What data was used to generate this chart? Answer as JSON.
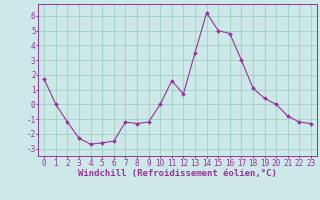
{
  "x": [
    0,
    1,
    2,
    3,
    4,
    5,
    6,
    7,
    8,
    9,
    10,
    11,
    12,
    13,
    14,
    15,
    16,
    17,
    18,
    19,
    20,
    21,
    22,
    23
  ],
  "y": [
    1.7,
    0.0,
    -1.2,
    -2.3,
    -2.7,
    -2.6,
    -2.5,
    -1.2,
    -1.3,
    -1.2,
    0.0,
    1.6,
    0.7,
    3.5,
    6.2,
    5.0,
    4.8,
    3.0,
    1.1,
    0.4,
    0.0,
    -0.8,
    -1.2,
    -1.3
  ],
  "line_color": "#993399",
  "marker_color": "#993399",
  "bg_color": "#cce8e8",
  "grid_color": "#99ccbb",
  "xlabel": "Windchill (Refroidissement éolien,°C)",
  "xlim": [
    -0.5,
    23.5
  ],
  "ylim": [
    -3.5,
    6.8
  ],
  "yticks": [
    -3,
    -2,
    -1,
    0,
    1,
    2,
    3,
    4,
    5,
    6
  ],
  "xticks": [
    0,
    1,
    2,
    3,
    4,
    5,
    6,
    7,
    8,
    9,
    10,
    11,
    12,
    13,
    14,
    15,
    16,
    17,
    18,
    19,
    20,
    21,
    22,
    23
  ],
  "tick_label_color": "#993399",
  "font_size_label": 6.5,
  "font_size_tick": 5.5
}
